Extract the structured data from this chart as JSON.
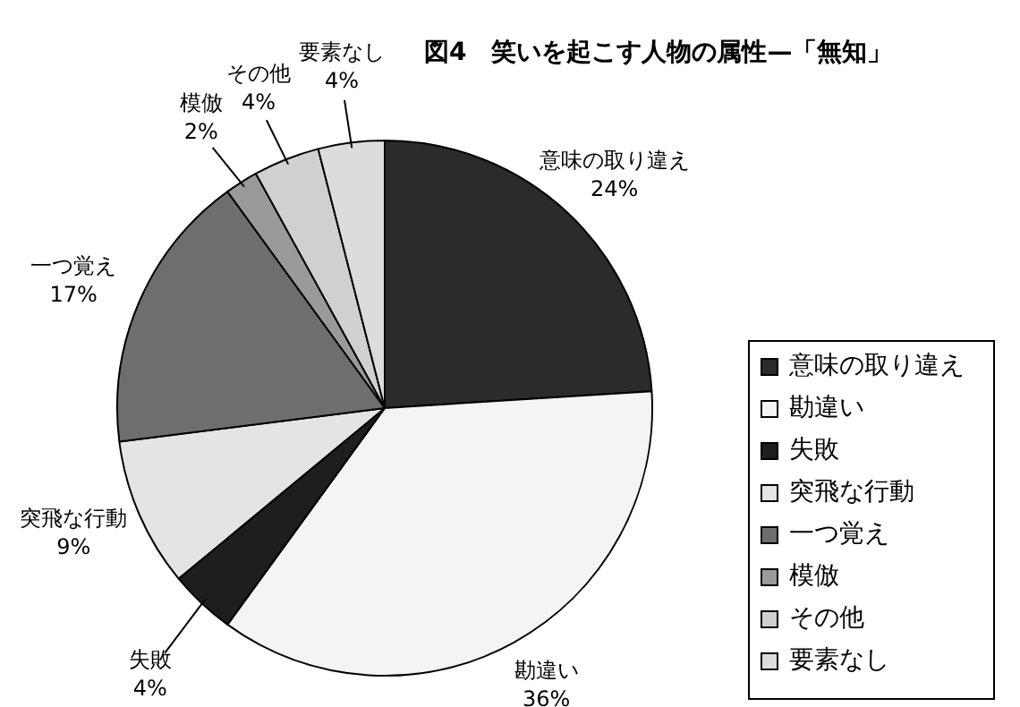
{
  "chart_data": {
    "type": "pie",
    "title": "図4　笑いを起こす人物の属性—「無知」",
    "categories": [
      "意味の取り違え",
      "勘違い",
      "失敗",
      "突飛な行動",
      "一つ覚え",
      "模倣",
      "その他",
      "要素なし"
    ],
    "values": [
      24,
      36,
      4,
      9,
      17,
      2,
      4,
      4
    ],
    "value_labels": [
      "24%",
      "36%",
      "4%",
      "9%",
      "17%",
      "2%",
      "4%",
      "4%"
    ],
    "colors": [
      "#2b2b2b",
      "#f4f4f4",
      "#1e1e1e",
      "#e4e4e4",
      "#6e6e6e",
      "#9a9a9a",
      "#d0d0d0",
      "#dcdcdc"
    ],
    "legend": "right"
  }
}
